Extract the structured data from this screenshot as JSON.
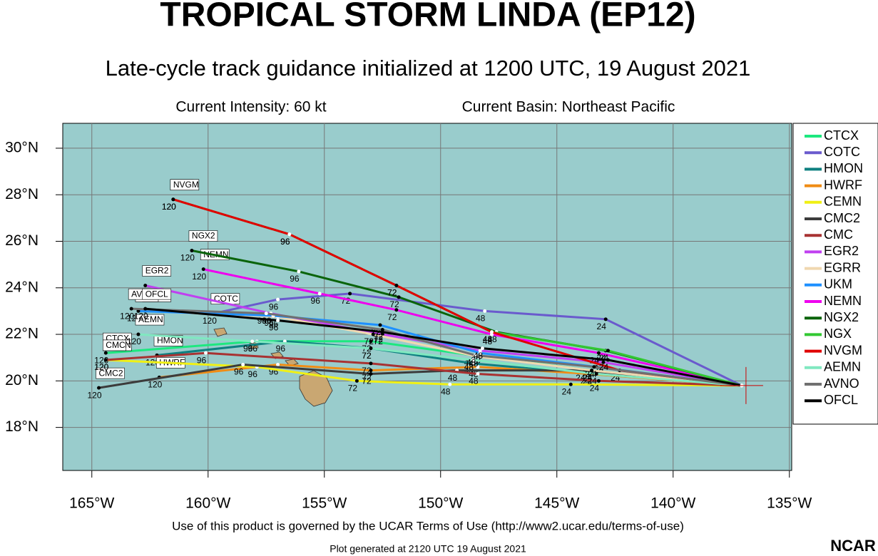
{
  "chart_data": {
    "type": "line",
    "title": "TROPICAL STORM LINDA (EP12)",
    "subtitle": "Late-cycle track guidance initialized at 1200 UTC, 19 August 2021",
    "intensity": "Current Intensity: 60 kt",
    "basin": "Current Basin: Northeast Pacific",
    "footer": "Use of this product is governed by the UCAR Terms of Use (http://www2.ucar.edu/terms-of-use)",
    "generated": "Plot generated at 2120 UTC   19 August 2021",
    "logo": "NCAR",
    "grid": true,
    "xlim": [
      -166.25,
      -134.9
    ],
    "ylim": [
      16.15,
      31.07
    ],
    "xticks": [
      {
        "value": -165,
        "label": "165°W"
      },
      {
        "value": -160,
        "label": "160°W"
      },
      {
        "value": -155,
        "label": "155°W"
      },
      {
        "value": -150,
        "label": "150°W"
      },
      {
        "value": -145,
        "label": "145°W"
      },
      {
        "value": -140,
        "label": "140°W"
      },
      {
        "value": -135,
        "label": "135°W"
      }
    ],
    "yticks": [
      {
        "value": 18,
        "label": "18°N"
      },
      {
        "value": 20,
        "label": "20°N"
      },
      {
        "value": 22,
        "label": "22°N"
      },
      {
        "value": 24,
        "label": "24°N"
      },
      {
        "value": 26,
        "label": "26°N"
      },
      {
        "value": 28,
        "label": "28°N"
      },
      {
        "value": 30,
        "label": "30°N"
      }
    ],
    "forecast_hours": [
      0,
      24,
      48,
      72,
      96,
      120
    ],
    "series": [
      {
        "name": "CTCX",
        "color": "#1de87f",
        "x": [
          -137.05,
          -143.5,
          -148.6,
          -153.0,
          -157.9,
          -164.4
        ],
        "values": [
          19.8,
          20.45,
          21.1,
          21.7,
          21.7,
          21.2
        ]
      },
      {
        "name": "COTC",
        "color": "#6a5acd",
        "x": [
          -137.05,
          -142.9,
          -148.1,
          -153.9,
          -157.0,
          -159.75
        ],
        "values": [
          19.8,
          22.65,
          23.0,
          23.75,
          23.5,
          22.9
        ]
      },
      {
        "name": "HMON",
        "color": "#0e8080",
        "x": [
          -137.05,
          -143.5,
          -148.6,
          -153.0,
          -156.7,
          -162.2
        ],
        "values": [
          19.8,
          20.3,
          20.75,
          21.4,
          21.7,
          21.1
        ]
      },
      {
        "name": "HWRF",
        "color": "#f08c14",
        "x": [
          -137.05,
          -143.6,
          -148.4,
          -153.0,
          -157.0,
          -162.1
        ],
        "values": [
          19.8,
          20.3,
          20.6,
          20.45,
          20.7,
          20.15
        ]
      },
      {
        "name": "CEMN",
        "color": "#f0f014",
        "x": [
          -137.05,
          -144.4,
          -149.6,
          -153.6,
          -157.9,
          -164.4
        ],
        "values": [
          19.8,
          19.85,
          19.85,
          20.0,
          20.6,
          20.9
        ]
      },
      {
        "name": "CMC2",
        "color": "#3c3c3c",
        "x": [
          -137.05,
          -143.8,
          -149.3,
          -153.0,
          -158.5,
          -164.7
        ],
        "values": [
          19.8,
          20.45,
          20.45,
          20.3,
          20.7,
          19.7
        ]
      },
      {
        "name": "CMC",
        "color": "#a83232",
        "x": [
          -137.05,
          -143.2,
          -148.4,
          -153.0,
          -160.1,
          -164.4
        ],
        "values": [
          19.8,
          20.0,
          20.3,
          20.75,
          21.2,
          20.9
        ]
      },
      {
        "name": "EGR2",
        "color": "#c040f0",
        "x": [
          -137.05,
          -143.0,
          -148.3,
          -152.5,
          -157.3,
          -162.7
        ],
        "values": [
          19.8,
          20.8,
          21.3,
          22.0,
          22.9,
          24.1
        ]
      },
      {
        "name": "EGRR",
        "color": "#f0d8b0",
        "x": [
          -137.05,
          -143.5,
          -148.4,
          -152.9,
          -157.0,
          -162.7
        ],
        "values": [
          19.8,
          20.45,
          21.05,
          22.0,
          22.75,
          23.0
        ]
      },
      {
        "name": "UKM",
        "color": "#1e90ff",
        "x": [
          -137.05,
          -143.3,
          -148.3,
          -152.6,
          -157.2,
          -163.0
        ],
        "values": [
          19.8,
          20.6,
          21.2,
          22.4,
          22.8,
          23.0
        ]
      },
      {
        "name": "NEMN",
        "color": "#ee00ee",
        "x": [
          -137.05,
          -143.2,
          -147.8,
          -151.9,
          -155.2,
          -160.2
        ],
        "values": [
          19.8,
          21.2,
          22.0,
          23.05,
          23.75,
          24.8
        ]
      },
      {
        "name": "NGX2",
        "color": "#0a640a",
        "x": [
          -137.05,
          -142.9,
          -147.6,
          -151.8,
          -156.1,
          -160.7
        ],
        "values": [
          19.8,
          21.3,
          22.1,
          23.6,
          24.7,
          25.6
        ]
      },
      {
        "name": "NGX",
        "color": "#32c832",
        "x": [
          -137.05,
          -142.8,
          -147.8,
          -151.9,
          -156.5,
          -161.5
        ],
        "values": [
          19.8,
          21.3,
          22.1,
          24.1,
          26.3,
          27.8
        ]
      },
      {
        "name": "NVGM",
        "color": "#e00000",
        "x": [
          -137.05,
          -142.3,
          -147.8,
          -151.9,
          -156.5,
          -161.5
        ],
        "values": [
          19.8,
          20.45,
          22.1,
          24.1,
          26.3,
          27.8
        ]
      },
      {
        "name": "AEMN",
        "color": "#80e8c0",
        "x": [
          -137.05,
          -143.3,
          -148.6,
          -153.0,
          -158.1,
          -163.0
        ],
        "values": [
          19.8,
          20.3,
          20.9,
          21.4,
          21.7,
          22.0
        ]
      },
      {
        "name": "AVNO",
        "color": "#707070",
        "x": [
          -137.05,
          -143.4,
          -148.5,
          -152.5,
          -157.5,
          -163.3
        ],
        "values": [
          19.8,
          20.6,
          21.1,
          22.2,
          22.9,
          23.1
        ]
      },
      {
        "name": "OFCL",
        "color": "#000000",
        "x": [
          -137.05,
          -142.8,
          -148.2,
          -152.5,
          -157.0,
          -162.7
        ],
        "values": [
          19.8,
          20.9,
          21.4,
          22.1,
          22.6,
          23.1
        ]
      }
    ]
  }
}
